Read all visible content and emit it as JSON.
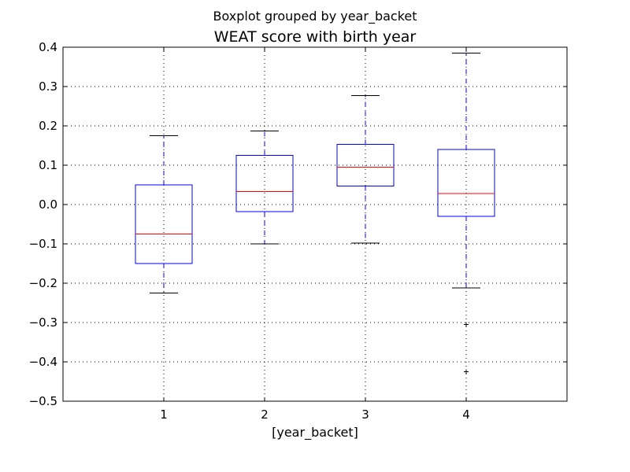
{
  "figure": {
    "suptitle": "Boxplot grouped by year_backet",
    "title": "WEAT score with birth year",
    "xlabel": "[year_backet]"
  },
  "colors": {
    "box": "#0000ff",
    "whisker": "#0000ff",
    "median": "#ff0000",
    "cap": "#000000",
    "flier": "#000000",
    "grid": "#000000",
    "axes": "#000000"
  },
  "chart_data": {
    "type": "boxplot",
    "title": "WEAT score with birth year",
    "suptitle": "Boxplot grouped by year_backet",
    "xlabel": "[year_backet]",
    "ylabel": "",
    "categories": [
      "1",
      "2",
      "3",
      "4"
    ],
    "ylim": [
      -0.5,
      0.4
    ],
    "yticks": [
      -0.5,
      -0.4,
      -0.3,
      -0.2,
      -0.1,
      0.0,
      0.1,
      0.2,
      0.3,
      0.4
    ],
    "ytick_labels": [
      "−0.5",
      "−0.4",
      "−0.3",
      "−0.2",
      "−0.1",
      "0.0",
      "0.1",
      "0.2",
      "0.3",
      "0.4"
    ],
    "grid": true,
    "boxes": [
      {
        "category": "1",
        "whisker_low": -0.225,
        "q1": -0.15,
        "median": -0.075,
        "q3": 0.05,
        "whisker_high": 0.175,
        "fliers": []
      },
      {
        "category": "2",
        "whisker_low": -0.1,
        "q1": -0.018,
        "median": 0.033,
        "q3": 0.125,
        "whisker_high": 0.187,
        "fliers": []
      },
      {
        "category": "3",
        "whisker_low": -0.098,
        "q1": 0.047,
        "median": 0.095,
        "q3": 0.153,
        "whisker_high": 0.277,
        "fliers": []
      },
      {
        "category": "4",
        "whisker_low": -0.212,
        "q1": -0.03,
        "median": 0.028,
        "q3": 0.14,
        "whisker_high": 0.385,
        "fliers": [
          -0.305,
          -0.425
        ]
      }
    ]
  }
}
